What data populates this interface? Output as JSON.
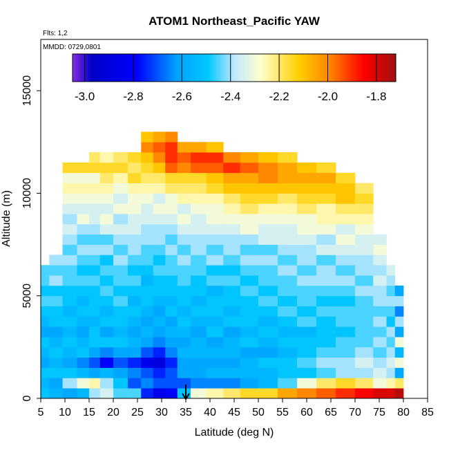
{
  "chart_data": {
    "type": "heatmap",
    "title": "ATOM1 Northeast_Pacific YAW",
    "flights_label": "Flts: 1,2",
    "dates_label": "MMDD: 0729,0801",
    "xlabel": "Latitude (deg N)",
    "ylabel": "Altitude (m)",
    "xlim": [
      5,
      85
    ],
    "ylim": [
      0,
      17500
    ],
    "x_ticks": [
      "5",
      "10",
      "15",
      "20",
      "25",
      "30",
      "35",
      "40",
      "45",
      "50",
      "55",
      "60",
      "65",
      "70",
      "75",
      "80",
      "85"
    ],
    "y_ticks": [
      "0",
      "5000",
      "10000",
      "15000"
    ],
    "colorbar": {
      "range": [
        -3.05,
        -1.72
      ],
      "ticks": [
        "-3.0",
        "-2.8",
        "-2.6",
        "-2.4",
        "-2.2",
        "-2.0",
        "-1.8"
      ]
    },
    "marker_latitude": 35,
    "grid": false,
    "profiles": [
      {
        "lat": 5.5,
        "top": 6500,
        "values": [
          -2.5,
          -2.55,
          -2.5,
          -2.6,
          -2.55,
          -2.5,
          -2.6,
          -2.55,
          -2.5,
          -2.45,
          -2.5,
          -2.45,
          -2.45
        ]
      },
      {
        "lat": 8,
        "top": 7000,
        "values": [
          -2.55,
          -2.6,
          -2.5,
          -2.55,
          -2.5,
          -2.55,
          -2.6,
          -2.5,
          -2.5,
          -2.45,
          -2.5,
          -2.4,
          -2.45,
          -2.4
        ]
      },
      {
        "lat": 11,
        "top": 11500,
        "values": [
          -2.6,
          -2.4,
          -2.5,
          -2.6,
          -2.55,
          -2.5,
          -2.55,
          -2.5,
          -2.55,
          -2.5,
          -2.5,
          -2.45,
          -2.45,
          -2.4,
          -2.45,
          -2.4,
          -2.35,
          -2.4,
          -2.35,
          -2.3,
          -2.25,
          -2.3,
          -2.15
        ]
      },
      {
        "lat": 14,
        "top": 11500,
        "values": [
          -2.55,
          -2.3,
          -2.55,
          -2.65,
          -2.5,
          -2.55,
          -2.6,
          -2.55,
          -2.5,
          -2.55,
          -2.5,
          -2.45,
          -2.5,
          -2.45,
          -2.4,
          -2.45,
          -2.4,
          -2.3,
          -2.35,
          -2.3,
          -2.25,
          -2.3,
          -2.15
        ]
      },
      {
        "lat": 16,
        "top": 12000,
        "values": [
          -2.4,
          -2.25,
          -2.6,
          -2.7,
          -2.6,
          -2.5,
          -2.5,
          -2.55,
          -2.5,
          -2.5,
          -2.5,
          -2.45,
          -2.5,
          -2.45,
          -2.4,
          -2.45,
          -2.4,
          -2.35,
          -2.35,
          -2.3,
          -2.25,
          -2.3,
          -2.15,
          -2.2
        ]
      },
      {
        "lat": 18.5,
        "top": 12000,
        "values": [
          -2.35,
          -2.4,
          -2.55,
          -2.8,
          -2.65,
          -2.5,
          -2.6,
          -2.5,
          -2.55,
          -2.5,
          -2.45,
          -2.5,
          -2.45,
          -2.5,
          -2.4,
          -2.45,
          -2.35,
          -2.3,
          -2.35,
          -2.3,
          -2.25,
          -2.2,
          -2.15,
          -2.25
        ]
      },
      {
        "lat": 21.5,
        "top": 12000,
        "values": [
          -2.45,
          -2.5,
          -2.6,
          -2.7,
          -2.6,
          -2.5,
          -2.55,
          -2.5,
          -2.5,
          -2.45,
          -2.5,
          -2.45,
          -2.45,
          -2.4,
          -2.45,
          -2.4,
          -2.35,
          -2.4,
          -2.3,
          -2.35,
          -2.3,
          -2.25,
          -2.15,
          -2.2
        ]
      },
      {
        "lat": 24.5,
        "top": 12000,
        "values": [
          -2.45,
          -2.7,
          -2.65,
          -2.75,
          -2.6,
          -2.55,
          -2.6,
          -2.55,
          -2.5,
          -2.55,
          -2.5,
          -2.45,
          -2.5,
          -2.45,
          -2.4,
          -2.4,
          -2.35,
          -2.35,
          -2.3,
          -2.3,
          -2.25,
          -2.15,
          -2.2,
          -2.15
        ]
      },
      {
        "lat": 27,
        "top": 13000,
        "values": [
          -2.75,
          -2.65,
          -2.7,
          -2.85,
          -2.7,
          -2.6,
          -2.55,
          -2.6,
          -2.55,
          -2.5,
          -2.5,
          -2.55,
          -2.5,
          -2.45,
          -2.45,
          -2.4,
          -2.4,
          -2.35,
          -2.35,
          -2.3,
          -2.25,
          -2.2,
          -2.15,
          -2.1,
          -2.0,
          -2.1
        ]
      },
      {
        "lat": 29.5,
        "top": 13000,
        "values": [
          -2.85,
          -2.7,
          -2.75,
          -2.9,
          -2.75,
          -2.65,
          -2.6,
          -2.55,
          -2.6,
          -2.55,
          -2.5,
          -2.5,
          -2.45,
          -2.5,
          -2.45,
          -2.4,
          -2.4,
          -2.35,
          -2.3,
          -2.35,
          -2.25,
          -2.2,
          -2.1,
          -2.0,
          -1.95,
          -2.05
        ]
      },
      {
        "lat": 32,
        "top": 13000,
        "values": [
          -2.8,
          -2.7,
          -2.7,
          -2.75,
          -2.65,
          -2.6,
          -2.55,
          -2.6,
          -2.5,
          -2.55,
          -2.5,
          -2.5,
          -2.45,
          -2.45,
          -2.4,
          -2.45,
          -2.4,
          -2.35,
          -2.3,
          -2.3,
          -2.2,
          -2.15,
          -1.95,
          -1.9,
          -1.9,
          -2.0
        ]
      },
      {
        "lat": 34.5,
        "top": 12500,
        "values": [
          -2.5,
          -2.7,
          -2.6,
          -2.6,
          -2.55,
          -2.6,
          -2.55,
          -2.5,
          -2.55,
          -2.5,
          -2.5,
          -2.45,
          -2.45,
          -2.4,
          -2.45,
          -2.4,
          -2.35,
          -2.3,
          -2.35,
          -2.25,
          -2.2,
          -2.15,
          -2.0,
          -1.95,
          -2.05
        ]
      },
      {
        "lat": 37.5,
        "top": 12500,
        "values": [
          -2.3,
          -2.65,
          -2.6,
          -2.6,
          -2.55,
          -2.55,
          -2.6,
          -2.55,
          -2.5,
          -2.55,
          -2.5,
          -2.5,
          -2.45,
          -2.45,
          -2.4,
          -2.4,
          -2.35,
          -2.35,
          -2.3,
          -2.25,
          -2.2,
          -2.15,
          -1.95,
          -1.9,
          -2.05
        ]
      },
      {
        "lat": 41,
        "top": 12500,
        "values": [
          -2.25,
          -2.65,
          -2.55,
          -2.6,
          -2.55,
          -2.6,
          -2.5,
          -2.55,
          -2.5,
          -2.5,
          -2.55,
          -2.45,
          -2.5,
          -2.4,
          -2.45,
          -2.4,
          -2.35,
          -2.3,
          -2.3,
          -2.25,
          -2.15,
          -2.1,
          -1.95,
          -1.9,
          -2.1
        ]
      },
      {
        "lat": 44.5,
        "top": 12000,
        "values": [
          -2.2,
          -2.65,
          -2.55,
          -2.6,
          -2.55,
          -2.55,
          -2.6,
          -2.5,
          -2.55,
          -2.5,
          -2.5,
          -2.45,
          -2.5,
          -2.45,
          -2.4,
          -2.4,
          -2.35,
          -2.3,
          -2.25,
          -2.2,
          -2.1,
          -2.05,
          -1.9,
          -2.0
        ]
      },
      {
        "lat": 48,
        "top": 12000,
        "values": [
          -2.15,
          -2.6,
          -2.55,
          -2.55,
          -2.6,
          -2.5,
          -2.55,
          -2.5,
          -2.5,
          -2.5,
          -2.45,
          -2.5,
          -2.45,
          -2.4,
          -2.45,
          -2.4,
          -2.3,
          -2.3,
          -2.2,
          -2.15,
          -2.1,
          -2.05,
          -1.95,
          -2.05
        ]
      },
      {
        "lat": 52,
        "top": 12000,
        "values": [
          -2.15,
          -2.55,
          -2.55,
          -2.5,
          -2.6,
          -2.55,
          -2.5,
          -2.55,
          -2.5,
          -2.45,
          -2.5,
          -2.45,
          -2.45,
          -2.4,
          -2.45,
          -2.35,
          -2.35,
          -2.3,
          -2.25,
          -2.15,
          -2.1,
          -2.0,
          -2.0,
          -2.1
        ]
      },
      {
        "lat": 56,
        "top": 12000,
        "values": [
          -2.05,
          -2.45,
          -2.5,
          -2.5,
          -2.55,
          -2.5,
          -2.55,
          -2.5,
          -2.45,
          -2.5,
          -2.45,
          -2.45,
          -2.4,
          -2.45,
          -2.4,
          -2.35,
          -2.35,
          -2.3,
          -2.25,
          -2.2,
          -2.1,
          -2.05,
          -2.05,
          -2.15
        ]
      },
      {
        "lat": 60,
        "top": 11500,
        "values": [
          -2.0,
          -2.3,
          -2.5,
          -2.45,
          -2.5,
          -2.5,
          -2.55,
          -2.45,
          -2.5,
          -2.45,
          -2.45,
          -2.4,
          -2.45,
          -2.4,
          -2.4,
          -2.35,
          -2.3,
          -2.3,
          -2.2,
          -2.15,
          -2.1,
          -2.05,
          -2.1
        ]
      },
      {
        "lat": 64,
        "top": 11500,
        "values": [
          -1.95,
          -2.2,
          -2.45,
          -2.4,
          -2.45,
          -2.5,
          -2.5,
          -2.5,
          -2.45,
          -2.5,
          -2.45,
          -2.4,
          -2.4,
          -2.45,
          -2.35,
          -2.4,
          -2.3,
          -2.25,
          -2.25,
          -2.15,
          -2.1,
          -2.05,
          -2.15
        ]
      },
      {
        "lat": 68,
        "top": 11000,
        "values": [
          -1.9,
          -2.15,
          -2.4,
          -2.4,
          -2.45,
          -2.45,
          -2.5,
          -2.45,
          -2.45,
          -2.5,
          -2.45,
          -2.4,
          -2.45,
          -2.4,
          -2.35,
          -2.3,
          -2.35,
          -2.25,
          -2.2,
          -2.1,
          -2.1,
          -2.15
        ]
      },
      {
        "lat": 72,
        "top": 10500,
        "values": [
          -1.85,
          -2.2,
          -2.4,
          -2.35,
          -2.4,
          -2.45,
          -2.45,
          -2.45,
          -2.45,
          -2.45,
          -2.4,
          -2.45,
          -2.4,
          -2.4,
          -2.35,
          -2.35,
          -2.3,
          -2.25,
          -2.2,
          -2.15,
          -2.2
        ]
      },
      {
        "lat": 75.5,
        "top": 8000,
        "values": [
          -1.8,
          -2.3,
          -2.35,
          -2.4,
          -2.45,
          -2.4,
          -2.45,
          -2.4,
          -2.45,
          -2.4,
          -2.4,
          -2.35,
          -2.4,
          -2.35,
          -2.3,
          -2.35
        ]
      },
      {
        "lat": 77.5,
        "top": 6500,
        "values": [
          -1.8,
          -2.25,
          -2.4,
          -2.35,
          -2.4,
          -2.45,
          -2.4,
          -2.5,
          -2.45,
          -2.4,
          -2.45,
          -2.4,
          -2.35
        ]
      },
      {
        "lat": 79,
        "top": 5500,
        "values": [
          -1.75,
          -2.2,
          -2.6,
          -2.3,
          -2.55,
          -2.3,
          -2.6,
          -2.4,
          -2.65,
          -2.4,
          -2.6
        ]
      }
    ]
  }
}
